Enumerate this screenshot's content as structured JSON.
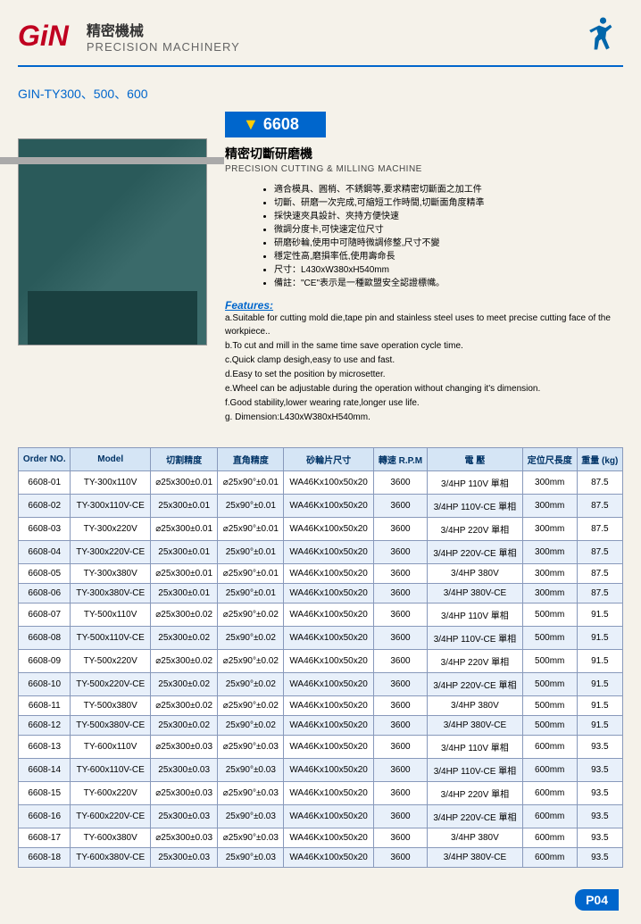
{
  "header": {
    "logo": "GiN",
    "title_cn": "精密機械",
    "title_en": "PRECISION MACHINERY"
  },
  "subtitle": "GIN-TY300、500、600",
  "product_code": "6608",
  "product_title_cn": "精密切斷研磨機",
  "product_title_en": "PRECISION CUTTING & MILLING MACHINE",
  "bullets_cn": [
    "適合模具、圓梢、不銹鋼等,要求精密切斷面之加工件",
    "切斷、研磨一次完成,可縮短工作時間,切斷面角度精準",
    "採快速夾具設計、夾持方便快速",
    "微調分度卡,可快速定位尺寸",
    "研磨砂輪,使用中可隨時微調修整,尺寸不變",
    "穩定性高,磨損率低,使用壽命長",
    "尺寸：L430xW380xH540mm",
    "備註：\"CE\"表示是一種歐盟安全認證標幟。"
  ],
  "features_label": "Features:",
  "features_en": [
    "a.Suitable for cutting mold die,tape pin and stainless steel uses to meet precise cutting face of the workpiece..",
    "b.To cut and mill in the same time save operation cycle time.",
    "c.Quick clamp desigh,easy to use and fast.",
    "d.Easy to set the position by microsetter.",
    "e.Wheel can be adjustable during the operation without changing it's dimension.",
    "f.Good stability,lower wearing rate,longer use life.",
    "g. Dimension:L430xW380xH540mm."
  ],
  "table": {
    "columns": [
      "Order NO.",
      "Model",
      "切割精度",
      "直角精度",
      "砂輪片尺寸",
      "轉速 R.P.M",
      "電 壓",
      "定位尺長度",
      "重量 (kg)"
    ],
    "rows": [
      [
        "6608-01",
        "TY-300x110V",
        "⌀25x300±0.01",
        "⌀25x90°±0.01",
        "WA46Kx100x50x20",
        "3600",
        "3/4HP 110V 單相",
        "300mm",
        "87.5"
      ],
      [
        "6608-02",
        "TY-300x110V-CE",
        "25x300±0.01",
        "25x90°±0.01",
        "WA46Kx100x50x20",
        "3600",
        "3/4HP 110V-CE 單相",
        "300mm",
        "87.5"
      ],
      [
        "6608-03",
        "TY-300x220V",
        "⌀25x300±0.01",
        "⌀25x90°±0.01",
        "WA46Kx100x50x20",
        "3600",
        "3/4HP 220V 單相",
        "300mm",
        "87.5"
      ],
      [
        "6608-04",
        "TY-300x220V-CE",
        "25x300±0.01",
        "25x90°±0.01",
        "WA46Kx100x50x20",
        "3600",
        "3/4HP 220V-CE 單相",
        "300mm",
        "87.5"
      ],
      [
        "6608-05",
        "TY-300x380V",
        "⌀25x300±0.01",
        "⌀25x90°±0.01",
        "WA46Kx100x50x20",
        "3600",
        "3/4HP 380V",
        "300mm",
        "87.5"
      ],
      [
        "6608-06",
        "TY-300x380V-CE",
        "25x300±0.01",
        "25x90°±0.01",
        "WA46Kx100x50x20",
        "3600",
        "3/4HP 380V-CE",
        "300mm",
        "87.5"
      ],
      [
        "6608-07",
        "TY-500x110V",
        "⌀25x300±0.02",
        "⌀25x90°±0.02",
        "WA46Kx100x50x20",
        "3600",
        "3/4HP 110V 單相",
        "500mm",
        "91.5"
      ],
      [
        "6608-08",
        "TY-500x110V-CE",
        "25x300±0.02",
        "25x90°±0.02",
        "WA46Kx100x50x20",
        "3600",
        "3/4HP 110V-CE 單相",
        "500mm",
        "91.5"
      ],
      [
        "6608-09",
        "TY-500x220V",
        "⌀25x300±0.02",
        "⌀25x90°±0.02",
        "WA46Kx100x50x20",
        "3600",
        "3/4HP 220V 單相",
        "500mm",
        "91.5"
      ],
      [
        "6608-10",
        "TY-500x220V-CE",
        "25x300±0.02",
        "25x90°±0.02",
        "WA46Kx100x50x20",
        "3600",
        "3/4HP 220V-CE 單相",
        "500mm",
        "91.5"
      ],
      [
        "6608-11",
        "TY-500x380V",
        "⌀25x300±0.02",
        "⌀25x90°±0.02",
        "WA46Kx100x50x20",
        "3600",
        "3/4HP 380V",
        "500mm",
        "91.5"
      ],
      [
        "6608-12",
        "TY-500x380V-CE",
        "25x300±0.02",
        "25x90°±0.02",
        "WA46Kx100x50x20",
        "3600",
        "3/4HP 380V-CE",
        "500mm",
        "91.5"
      ],
      [
        "6608-13",
        "TY-600x110V",
        "⌀25x300±0.03",
        "⌀25x90°±0.03",
        "WA46Kx100x50x20",
        "3600",
        "3/4HP 110V 單相",
        "600mm",
        "93.5"
      ],
      [
        "6608-14",
        "TY-600x110V-CE",
        "25x300±0.03",
        "25x90°±0.03",
        "WA46Kx100x50x20",
        "3600",
        "3/4HP 110V-CE 單相",
        "600mm",
        "93.5"
      ],
      [
        "6608-15",
        "TY-600x220V",
        "⌀25x300±0.03",
        "⌀25x90°±0.03",
        "WA46Kx100x50x20",
        "3600",
        "3/4HP 220V 單相",
        "600mm",
        "93.5"
      ],
      [
        "6608-16",
        "TY-600x220V-CE",
        "25x300±0.03",
        "25x90°±0.03",
        "WA46Kx100x50x20",
        "3600",
        "3/4HP 220V-CE 單相",
        "600mm",
        "93.5"
      ],
      [
        "6608-17",
        "TY-600x380V",
        "⌀25x300±0.03",
        "⌀25x90°±0.03",
        "WA46Kx100x50x20",
        "3600",
        "3/4HP 380V",
        "600mm",
        "93.5"
      ],
      [
        "6608-18",
        "TY-600x380V-CE",
        "25x300±0.03",
        "25x90°±0.03",
        "WA46Kx100x50x20",
        "3600",
        "3/4HP 380V-CE",
        "600mm",
        "93.5"
      ]
    ],
    "header_bg": "#d5e5f5",
    "border_color": "#8899bb",
    "row_alt_bg": "#e8f0fa"
  },
  "page_number": "P04",
  "colors": {
    "brand_red": "#c00020",
    "brand_blue": "#0066cc",
    "page_bg": "#f5f2ea"
  }
}
